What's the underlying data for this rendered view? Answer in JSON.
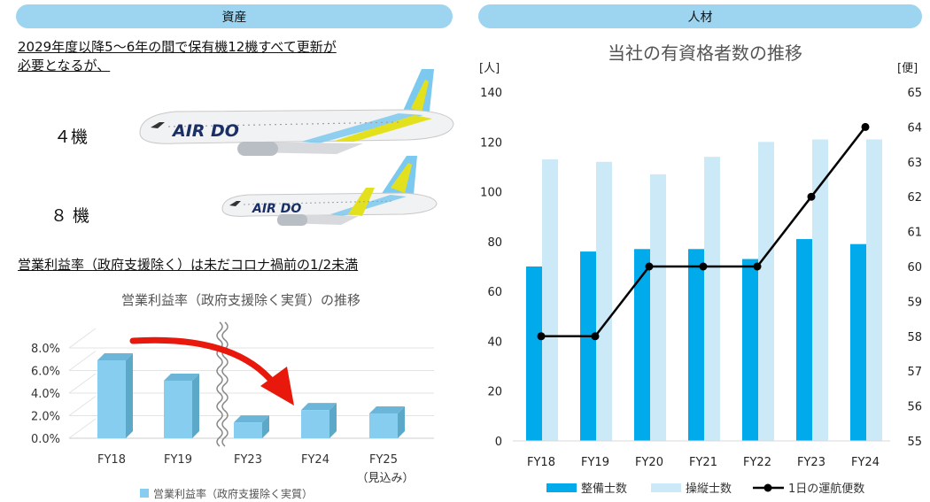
{
  "left_panel": {
    "pill_label": "資産",
    "fleet_note_line1": "2029年度以降5～6年の間で保有機12機すべて更新が",
    "fleet_note_line2": "必要となるが、",
    "aircraft": [
      {
        "count_label": "４機",
        "livery_text": "AIR DO",
        "name": "large-aircraft"
      },
      {
        "count_label": "８ 機",
        "livery_text": "AIR DO",
        "name": "small-aircraft"
      }
    ],
    "margin_note": "営業利益率（政府支援除く）は未だコロナ禍前の1/2未満"
  },
  "right_panel": {
    "pill_label": "人材"
  },
  "chart_data": [
    {
      "type": "bar",
      "title": "営業利益率（政府支援除く実質）の推移",
      "categories": [
        "FY18",
        "FY19",
        "FY23",
        "FY24",
        "FY25"
      ],
      "category_sublabels": [
        "",
        "",
        "",
        "",
        "（見込み）"
      ],
      "series": [
        {
          "name": "営業利益率（政府支援除く実質）",
          "values": [
            6.9,
            5.1,
            1.4,
            2.5,
            2.2
          ],
          "color": "#86cdf0"
        }
      ],
      "ylim": [
        0,
        8
      ],
      "yticks": [
        "0.0%",
        "2.0%",
        "4.0%",
        "6.0%",
        "8.0%"
      ],
      "grid": true,
      "legend": "bottom",
      "annotations": [
        "axis break between FY19 and FY23",
        "red arrow from FY18 toward FY24"
      ]
    },
    {
      "type": "bar",
      "title": "当社の有資格者数の推移",
      "categories": [
        "FY18",
        "FY19",
        "FY20",
        "FY21",
        "FY22",
        "FY23",
        "FY24"
      ],
      "ylabel": "[人]",
      "y2label": "[便]",
      "ylim": [
        0,
        140
      ],
      "y2lim": [
        55,
        65
      ],
      "yticks": [
        "0",
        "20",
        "40",
        "60",
        "80",
        "100",
        "120",
        "140"
      ],
      "y2ticks": [
        "55",
        "56",
        "57",
        "58",
        "59",
        "60",
        "61",
        "62",
        "63",
        "64",
        "65"
      ],
      "series": [
        {
          "name": "整備士数",
          "kind": "bar",
          "axis": "left",
          "values": [
            70,
            76,
            77,
            77,
            73,
            81,
            79
          ],
          "color": "#00aaeb"
        },
        {
          "name": "操縦士数",
          "kind": "bar",
          "axis": "left",
          "values": [
            113,
            112,
            107,
            114,
            120,
            121,
            121
          ],
          "color": "#cce9f8"
        },
        {
          "name": "1日の運航便数",
          "kind": "line",
          "axis": "right",
          "values": [
            58,
            58,
            60,
            60,
            60,
            62,
            64
          ],
          "color": "#000000"
        }
      ],
      "grid": false,
      "legend": "bottom"
    }
  ]
}
